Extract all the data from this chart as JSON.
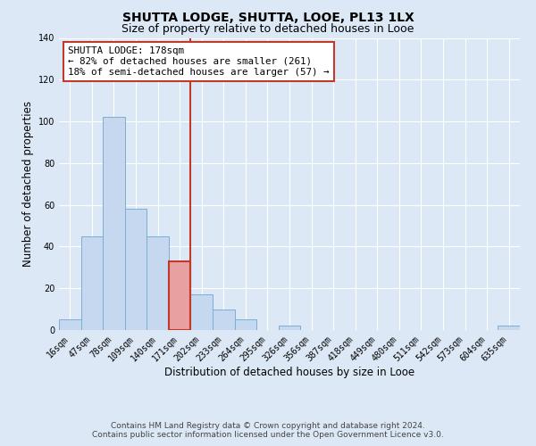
{
  "title": "SHUTTA LODGE, SHUTTA, LOOE, PL13 1LX",
  "subtitle": "Size of property relative to detached houses in Looe",
  "xlabel": "Distribution of detached houses by size in Looe",
  "ylabel": "Number of detached properties",
  "bin_labels": [
    "16sqm",
    "47sqm",
    "78sqm",
    "109sqm",
    "140sqm",
    "171sqm",
    "202sqm",
    "233sqm",
    "264sqm",
    "295sqm",
    "326sqm",
    "356sqm",
    "387sqm",
    "418sqm",
    "449sqm",
    "480sqm",
    "511sqm",
    "542sqm",
    "573sqm",
    "604sqm",
    "635sqm"
  ],
  "bar_heights": [
    5,
    45,
    102,
    58,
    45,
    33,
    17,
    10,
    5,
    0,
    2,
    0,
    0,
    0,
    0,
    0,
    0,
    0,
    0,
    0,
    2
  ],
  "bar_color": "#c5d8f0",
  "bar_edge_color": "#7aaed6",
  "highlight_bar_index": 5,
  "highlight_bar_color": "#e8a0a0",
  "highlight_bar_edge": "#c0392b",
  "highlight_color": "#c0392b",
  "annotation_title": "SHUTTA LODGE: 178sqm",
  "annotation_line1": "← 82% of detached houses are smaller (261)",
  "annotation_line2": "18% of semi-detached houses are larger (57) →",
  "annotation_box_color": "#ffffff",
  "annotation_box_edge": "#c0392b",
  "ylim": [
    0,
    140
  ],
  "yticks": [
    0,
    20,
    40,
    60,
    80,
    100,
    120,
    140
  ],
  "footer_line1": "Contains HM Land Registry data © Crown copyright and database right 2024.",
  "footer_line2": "Contains public sector information licensed under the Open Government Licence v3.0.",
  "bg_color": "#dce8f5",
  "plot_bg_color": "#dce8f5",
  "grid_color": "#ffffff",
  "title_fontsize": 10,
  "subtitle_fontsize": 9,
  "axis_label_fontsize": 8.5,
  "tick_fontsize": 7,
  "annotation_fontsize": 7.8,
  "footer_fontsize": 6.5
}
